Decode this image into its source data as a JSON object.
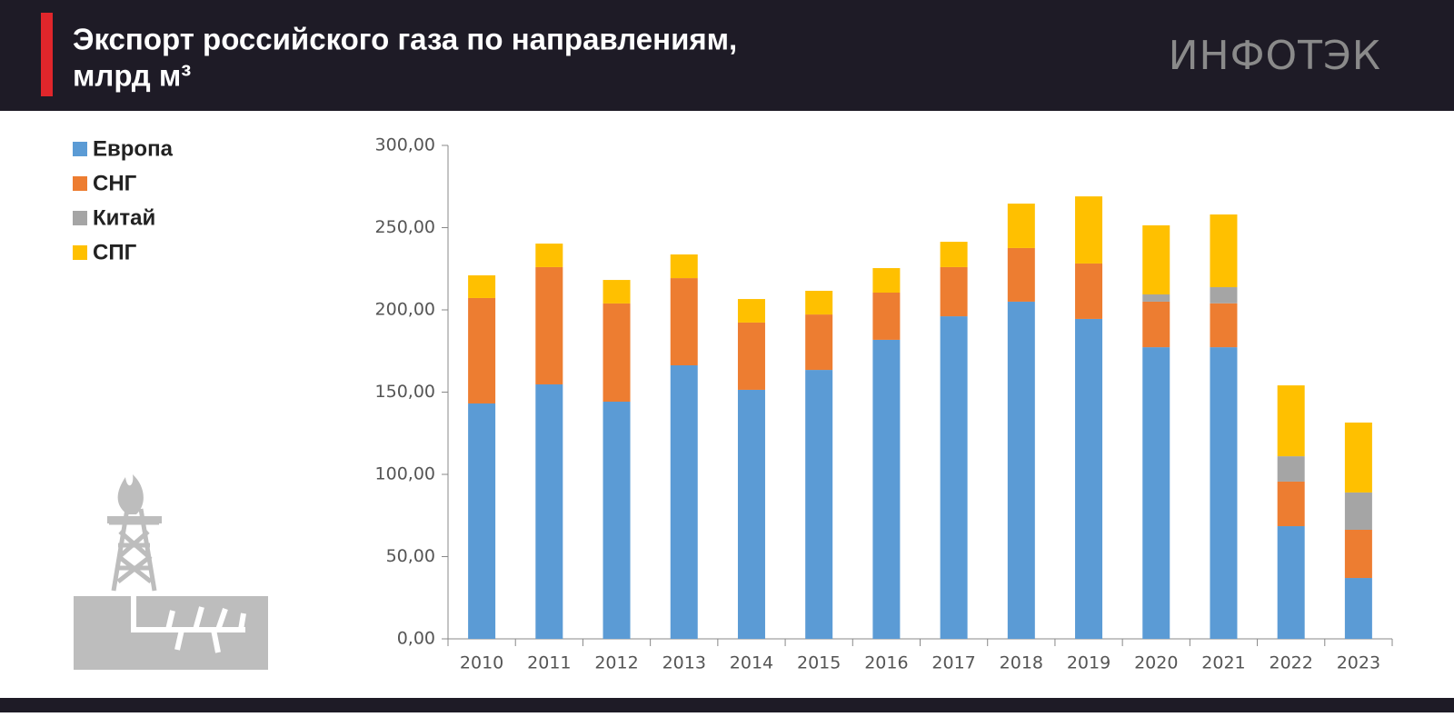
{
  "chart_data": {
    "type": "stacked-bar",
    "title": [
      "Экспорт российского газа по направлениям,",
      "млрд м³"
    ],
    "logo": "ИНФОТЭК",
    "categories": [
      "2010",
      "2011",
      "2012",
      "2013",
      "2014",
      "2015",
      "2016",
      "2017",
      "2018",
      "2019",
      "2020",
      "2021",
      "2022",
      "2023"
    ],
    "series": [
      {
        "name": "Европа",
        "color": "#5b9bd5",
        "values": [
          143.1,
          154.7,
          144.2,
          166.3,
          151.4,
          163.5,
          181.8,
          196.1,
          205.0,
          194.5,
          177.3,
          177.3,
          68.5,
          37.0
        ]
      },
      {
        "name": "СНГ",
        "color": "#ed7d31",
        "values": [
          64.1,
          71.3,
          59.7,
          53.0,
          40.9,
          33.7,
          28.7,
          29.9,
          32.6,
          33.7,
          27.7,
          26.7,
          27.1,
          29.3
        ]
      },
      {
        "name": "Китай",
        "color": "#a5a5a5",
        "values": [
          0,
          0,
          0,
          0,
          0,
          0,
          0,
          0,
          0,
          0,
          4.4,
          9.8,
          15.4,
          22.7
        ]
      },
      {
        "name": "СПГ",
        "color": "#ffc000",
        "values": [
          13.8,
          14.3,
          14.3,
          14.4,
          14.3,
          14.4,
          14.9,
          15.4,
          27.0,
          40.8,
          42.0,
          44.2,
          43.1,
          42.5
        ]
      }
    ],
    "ylim": [
      0,
      300
    ],
    "yticks": [
      {
        "value": 0,
        "label": "0,00"
      },
      {
        "value": 50,
        "label": "50,00"
      },
      {
        "value": 100,
        "label": "100,00"
      },
      {
        "value": 150,
        "label": "150,00"
      },
      {
        "value": 200,
        "label": "200,00"
      },
      {
        "value": 250,
        "label": "250,00"
      },
      {
        "value": 300,
        "label": "300,00"
      }
    ],
    "grid": false,
    "legend": "top-left"
  }
}
